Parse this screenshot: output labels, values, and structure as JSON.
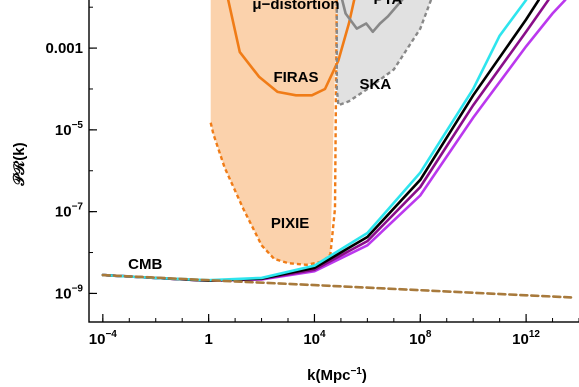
{
  "chart_data": {
    "type": "line",
    "title": "",
    "xlabel": {
      "base": "k(Mpc",
      "exp": "−1",
      "close": ")"
    },
    "ylabel": "𝒫ℛ(k)",
    "x_scale": "log",
    "y_scale": "log",
    "xlim": [
      3e-05,
      100000000000000.0
    ],
    "ylim": [
      2e-10,
      0.015
    ],
    "x_ticks": [
      {
        "value": 0.0001,
        "base": "10",
        "exp": "−4"
      },
      {
        "value": 1,
        "base": "1",
        "exp": ""
      },
      {
        "value": 10000,
        "base": "10",
        "exp": "4"
      },
      {
        "value": 100000000,
        "base": "10",
        "exp": "8"
      },
      {
        "value": 1000000000000,
        "base": "10",
        "exp": "12"
      }
    ],
    "y_ticks": [
      {
        "value": 0.001,
        "base": "0.001",
        "exp": ""
      },
      {
        "value": 1e-05,
        "base": "10",
        "exp": "−5"
      },
      {
        "value": 1e-07,
        "base": "10",
        "exp": "−7"
      },
      {
        "value": 1e-09,
        "base": "10",
        "exp": "−9"
      }
    ],
    "grid": false,
    "legend": "none",
    "regions": [
      {
        "label": "μ−distortion",
        "fill": "#fbd2ac",
        "boundary": [
          [
            1.2,
            0.02
          ],
          [
            1.2,
            1.5e-05
          ],
          [
            1.5,
            8e-06
          ],
          [
            4,
            1.2e-06
          ],
          [
            20,
            1.2e-07
          ],
          [
            100,
            1.5e-08
          ],
          [
            300,
            7e-09
          ],
          [
            1000,
            5.5e-09
          ],
          [
            5000,
            5e-09
          ],
          [
            20000,
            6e-09
          ],
          [
            40000,
            9e-09
          ],
          [
            70000,
            0.02
          ]
        ]
      },
      {
        "label": "PTA / SKA",
        "fill": "#e1e1e1",
        "boundary": [
          [
            70000,
            0.02
          ],
          [
            70000,
            0.0001
          ],
          [
            80000,
            4e-05
          ],
          [
            200000,
            5e-05
          ],
          [
            1000000,
            0.0001
          ],
          [
            10000000,
            0.0003
          ],
          [
            100000000,
            0.003
          ],
          [
            300000000,
            0.02
          ]
        ]
      }
    ],
    "constraint_curves": [
      {
        "name": "FIRAS",
        "color": "#f07c17",
        "dashed": false,
        "points": [
          [
            5,
            0.02
          ],
          [
            15,
            0.0008
          ],
          [
            80,
            0.0002
          ],
          [
            400,
            8.5e-05
          ],
          [
            2000,
            7e-05
          ],
          [
            8000,
            7e-05
          ],
          [
            25000,
            0.0001
          ],
          [
            80000,
            0.0005
          ],
          [
            200000,
            0.004
          ],
          [
            350000,
            0.02
          ]
        ]
      },
      {
        "name": "PIXIE",
        "color": "#f07c17",
        "dashed": true,
        "points": [
          [
            1.2,
            1.5e-05
          ],
          [
            1.5,
            8e-06
          ],
          [
            4,
            1.2e-06
          ],
          [
            20,
            1.2e-07
          ],
          [
            100,
            1.5e-08
          ],
          [
            300,
            7e-09
          ],
          [
            1000,
            5.5e-09
          ],
          [
            5000,
            5e-09
          ],
          [
            20000,
            6e-09
          ],
          [
            40000,
            9e-09
          ],
          [
            60000,
            1.2e-07
          ],
          [
            70000,
            0.02
          ]
        ]
      },
      {
        "name": "SKA",
        "color": "#888888",
        "dashed": true,
        "points": [
          [
            70000,
            0.02
          ],
          [
            70000,
            0.0001
          ],
          [
            80000,
            4e-05
          ],
          [
            200000,
            5e-05
          ],
          [
            1000000,
            0.0001
          ],
          [
            10000000,
            0.0003
          ],
          [
            100000000,
            0.003
          ],
          [
            300000000,
            0.02
          ]
        ]
      },
      {
        "name": "PTA",
        "color": "#888888",
        "dashed": false,
        "points": [
          [
            100000,
            0.02
          ],
          [
            150000,
            0.007
          ],
          [
            400000,
            0.003
          ],
          [
            900000,
            0.004
          ],
          [
            1600000,
            0.0025
          ],
          [
            3000000,
            0.004
          ],
          [
            6000000,
            0.006
          ],
          [
            30000000,
            0.02
          ]
        ]
      }
    ],
    "series": [
      {
        "color": "#bb38ee",
        "points": [
          [
            0.0001,
            2.8e-09
          ],
          [
            0.01,
            2.4e-09
          ],
          [
            1,
            2.05e-09
          ],
          [
            100,
            2.2e-09
          ],
          [
            10000,
            3.5e-09
          ],
          [
            1000000,
            1.5e-08
          ],
          [
            100000000,
            2.5e-07
          ],
          [
            10000000000,
            2e-05
          ],
          [
            1000000000000,
            0.0011
          ],
          [
            10000000000000,
            0.007
          ],
          [
            30000000000000,
            0.015
          ]
        ]
      },
      {
        "color": "#8a0e8a",
        "points": [
          [
            0.0001,
            2.8e-09
          ],
          [
            0.01,
            2.4e-09
          ],
          [
            1,
            2.05e-09
          ],
          [
            100,
            2.25e-09
          ],
          [
            10000,
            3.8e-09
          ],
          [
            1000000,
            1.9e-08
          ],
          [
            100000000,
            4e-07
          ],
          [
            10000000000,
            4e-05
          ],
          [
            1000000000000,
            0.0025
          ],
          [
            7000000000000,
            0.015
          ]
        ]
      },
      {
        "color": "#000000",
        "points": [
          [
            0.0001,
            2.8e-09
          ],
          [
            0.01,
            2.4e-09
          ],
          [
            1,
            2.05e-09
          ],
          [
            100,
            2.3e-09
          ],
          [
            10000,
            4.2e-09
          ],
          [
            1000000,
            2.4e-08
          ],
          [
            100000000,
            6e-07
          ],
          [
            10000000000,
            7e-05
          ],
          [
            1000000000000,
            0.005
          ],
          [
            3000000000000,
            0.015
          ]
        ]
      },
      {
        "color": "#2ee5ee",
        "points": [
          [
            0.0001,
            2.8e-09
          ],
          [
            0.01,
            2.4e-09
          ],
          [
            1,
            2.1e-09
          ],
          [
            100,
            2.4e-09
          ],
          [
            10000,
            4.8e-09
          ],
          [
            1000000,
            3e-08
          ],
          [
            100000000,
            9e-07
          ],
          [
            10000000000,
            0.0001
          ],
          [
            100000000000,
            0.002
          ],
          [
            1000000000000,
            0.015
          ]
        ]
      },
      {
        "color": "#a87a3c",
        "dashed": true,
        "points": [
          [
            0.0001,
            2.8e-09
          ],
          [
            1,
            2.1e-09
          ],
          [
            10000,
            1.6e-09
          ],
          [
            100000000,
            1.2e-09
          ],
          [
            1000000000000,
            9e-10
          ],
          [
            50000000000000,
            8e-10
          ]
        ]
      }
    ],
    "annotations": [
      {
        "text": "μ−distortion",
        "x": 2000,
        "y": 0.009
      },
      {
        "text": "FIRAS",
        "x": 2000,
        "y": 0.00015
      },
      {
        "text": "PIXIE",
        "x": 1200,
        "y": 4e-08
      },
      {
        "text": "PTA",
        "x": 6000000,
        "y": 0.012
      },
      {
        "text": "SKA",
        "x": 2000000,
        "y": 0.0001
      },
      {
        "text": "CMB",
        "x": 0.004,
        "y": 4e-09
      }
    ]
  }
}
